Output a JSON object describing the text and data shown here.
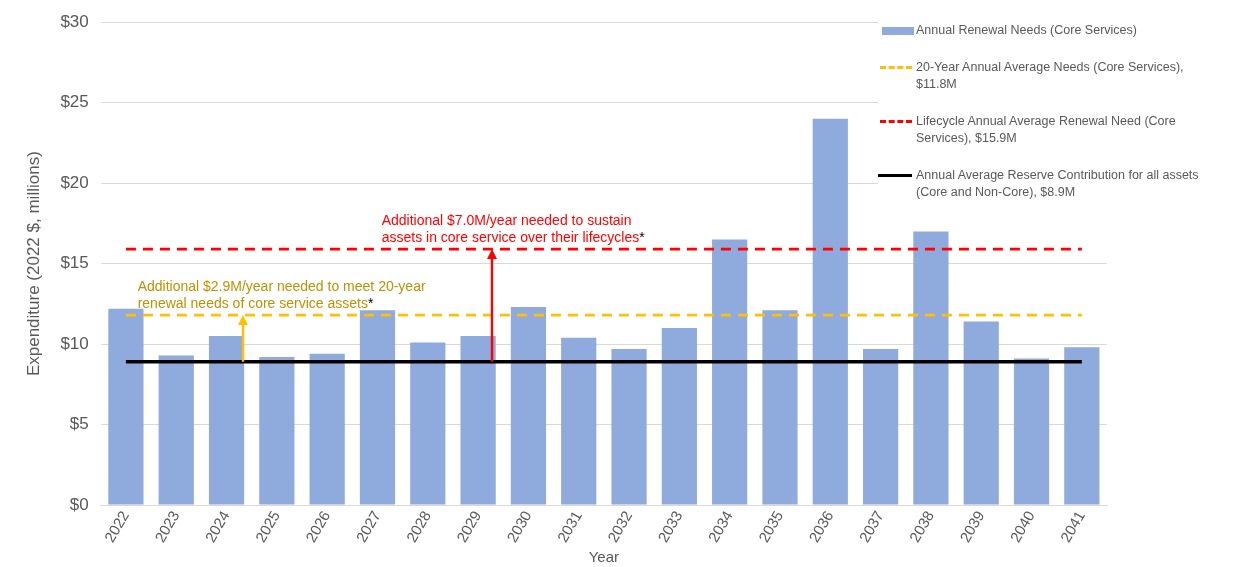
{
  "chart_data": {
    "type": "bar",
    "xlabel": "Year",
    "ylabel": "Expenditure (2022 $, millions)",
    "categories": [
      "2022",
      "2023",
      "2024",
      "2025",
      "2026",
      "2027",
      "2028",
      "2029",
      "2030",
      "2031",
      "2032",
      "2033",
      "2034",
      "2035",
      "2036",
      "2037",
      "2038",
      "2039",
      "2040",
      "2041"
    ],
    "series": [
      {
        "name": "Annual Renewal Needs (Core Services)",
        "color": "#8faadc",
        "values": [
          12.2,
          9.3,
          10.5,
          9.2,
          9.4,
          12.1,
          10.1,
          10.5,
          12.3,
          10.4,
          9.7,
          11.0,
          16.5,
          12.1,
          24.0,
          9.7,
          17.0,
          11.4,
          9.1,
          9.8
        ]
      },
      {
        "name": "20-Year Annual Average Needs (Core Services), $11.8M",
        "type": "line",
        "color": "#ffc000",
        "line_style": "dashed",
        "values": [
          11.8,
          11.8,
          11.8,
          11.8,
          11.8,
          11.8,
          11.8,
          11.8,
          11.8,
          11.8,
          11.8,
          11.8,
          11.8,
          11.8,
          11.8,
          11.8,
          11.8,
          11.8,
          11.8,
          11.8
        ]
      },
      {
        "name": "Lifecycle Annual Average Renewal Need (Core Services), $15.9M",
        "type": "line",
        "color": "#ff0000",
        "line_style": "dashed",
        "values": [
          15.9,
          15.9,
          15.9,
          15.9,
          15.9,
          15.9,
          15.9,
          15.9,
          15.9,
          15.9,
          15.9,
          15.9,
          15.9,
          15.9,
          15.9,
          15.9,
          15.9,
          15.9,
          15.9,
          15.9
        ]
      },
      {
        "name": "Annual Average Reserve Contribution for all assets (Core and Non-Core), $8.9M",
        "type": "line",
        "color": "#000000",
        "line_style": "solid",
        "values": [
          8.9,
          8.9,
          8.9,
          8.9,
          8.9,
          8.9,
          8.9,
          8.9,
          8.9,
          8.9,
          8.9,
          8.9,
          8.9,
          8.9,
          8.9,
          8.9,
          8.9,
          8.9,
          8.9,
          8.9
        ]
      }
    ],
    "ylim": [
      0,
      30
    ],
    "yticks": [
      {
        "value": 0,
        "label": "$0"
      },
      {
        "value": 5,
        "label": "$5"
      },
      {
        "value": 10,
        "label": "$10"
      },
      {
        "value": 15,
        "label": "$15"
      },
      {
        "value": 20,
        "label": "$20"
      },
      {
        "value": 25,
        "label": "$25"
      },
      {
        "value": 30,
        "label": "$30"
      }
    ],
    "grid": "y",
    "legend": "top right",
    "marker": "none",
    "annotations": [
      "Additional  $2.9M/year needed to meet 20-year renewal needs of core service assets*",
      "Additional  $7.0M/year needed to sustain assets in core service over their lifecycles*"
    ]
  }
}
